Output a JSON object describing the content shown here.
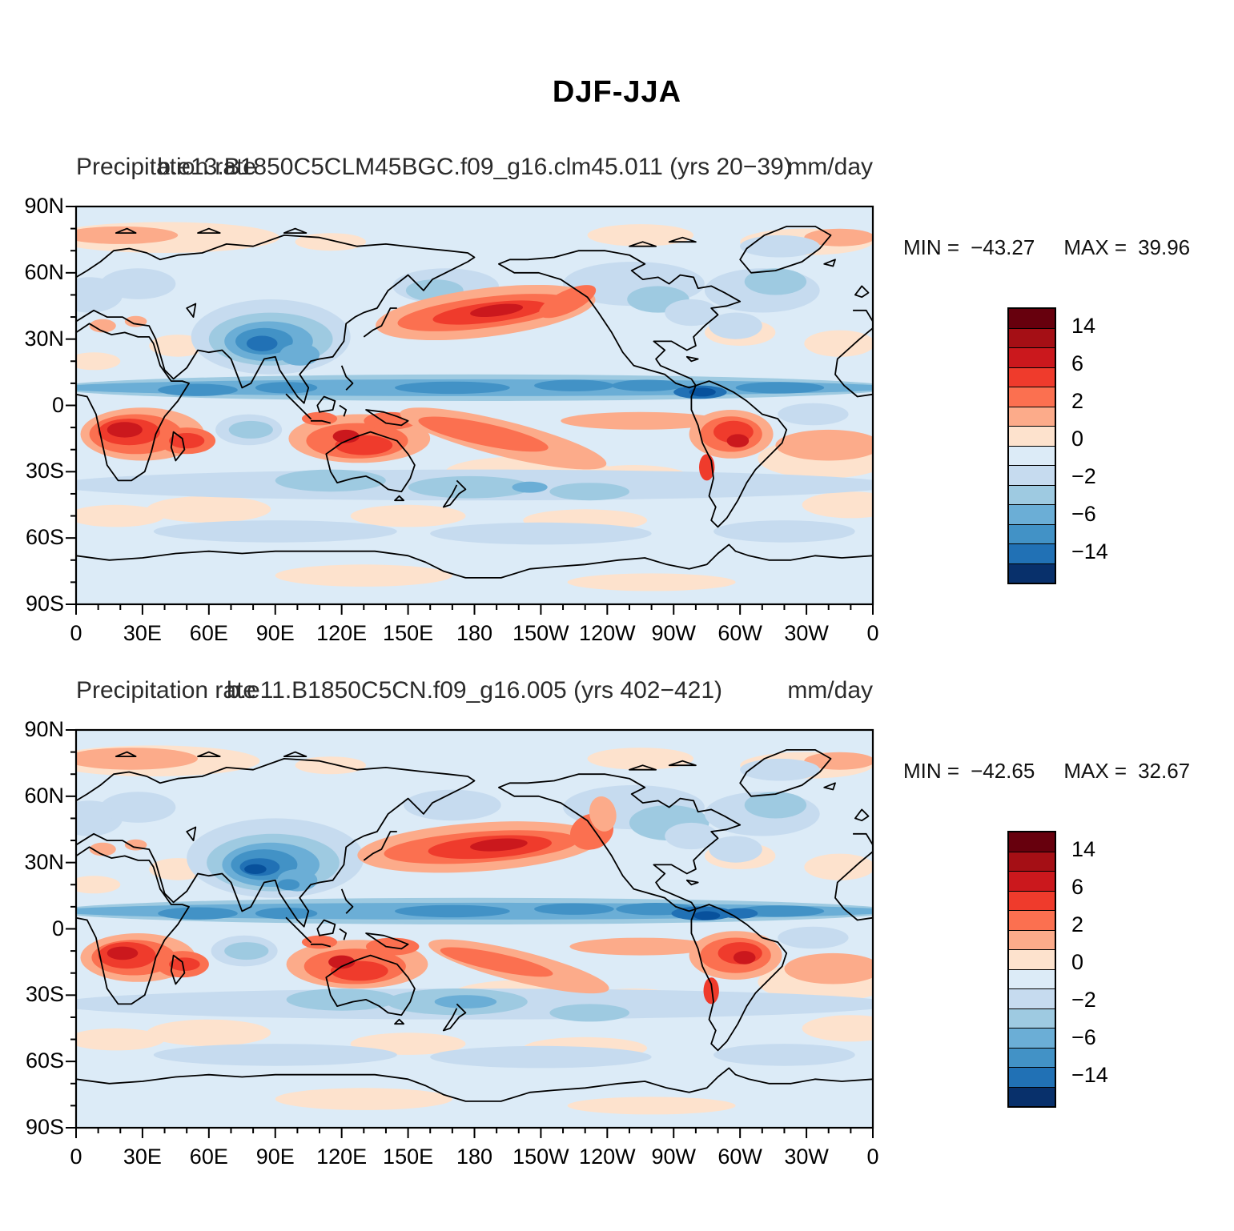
{
  "title": "DJF-JJA",
  "axes": {
    "x_ticks": [
      "0",
      "30E",
      "60E",
      "90E",
      "120E",
      "150E",
      "180",
      "150W",
      "120W",
      "90W",
      "60W",
      "30W",
      "0"
    ],
    "y_ticks": [
      "90N",
      "60N",
      "30N",
      "0",
      "30S",
      "60S",
      "90S"
    ]
  },
  "colorbar": {
    "labels": [
      "14",
      "6",
      "2",
      "0",
      "−2",
      "−6",
      "−14"
    ],
    "cell_colors": [
      "#67000d",
      "#a50f15",
      "#cb181d",
      "#ef3b2c",
      "#fb7050",
      "#fcab8a",
      "#fde2cd",
      "#dcebf7",
      "#c6dbef",
      "#9ecae1",
      "#6baed6",
      "#4292c6",
      "#2171b5",
      "#08306b"
    ]
  },
  "palette": {
    "base": "#dcebf7",
    "colors": {
      "r1": "#67000d",
      "r2": "#a50f15",
      "r3": "#cb181d",
      "r4": "#ef3b2c",
      "r5": "#fb7050",
      "r6": "#fcab8a",
      "r7": "#fde2cd",
      "b7": "#dcebf7",
      "b6": "#c6dbef",
      "b5": "#9ecae1",
      "b4": "#6baed6",
      "b3": "#4292c6",
      "b2": "#2171b5",
      "b1": "#08519c",
      "b0": "#08306b"
    }
  },
  "panels": [
    {
      "variable": "Precipitation rate",
      "case": "b.e13.B1850C5CLM45BGC.f09_g16.clm45.011 (yrs 20−39)",
      "units": "mm/day",
      "stats": {
        "min_label": "MIN =",
        "min": "−43.27",
        "max_label": "MAX =",
        "max": "39.96"
      }
    },
    {
      "variable": "Precipitation rate",
      "case": "b.e11.B1850C5CN.f09_g16.005 (yrs 402−421)",
      "units": "mm/day",
      "stats": {
        "min_label": "MIN =",
        "min": "−42.65",
        "max_label": "MAX =",
        "max": "32.67"
      }
    }
  ],
  "chart_data": [
    {
      "type": "heatmap",
      "subtype": "global-filled-contour-map",
      "figure_title": "DJF-JJA",
      "title": {
        "variable": "Precipitation rate",
        "case": "b.e13.B1850C5CLM45BGC.f09_g16.clm45.011 (yrs 20−39)",
        "units": "mm/day"
      },
      "stats": {
        "min": -43.27,
        "max": 39.96
      },
      "colorbar_labeled_levels": [
        14,
        6,
        2,
        0,
        -2,
        -6,
        -14
      ],
      "n_colors": 14,
      "legend_position": "right",
      "x_ticks": [
        "0",
        "30E",
        "60E",
        "90E",
        "120E",
        "150E",
        "180",
        "150W",
        "120W",
        "90W",
        "60W",
        "30W",
        "0"
      ],
      "y_ticks": [
        "90N",
        "60N",
        "30N",
        "0",
        "30S",
        "60S",
        "90S"
      ],
      "x_range_deg": [
        0,
        360
      ],
      "y_range_deg": [
        -90,
        90
      ],
      "grid": false
    },
    {
      "type": "heatmap",
      "subtype": "global-filled-contour-map",
      "figure_title": "DJF-JJA",
      "title": {
        "variable": "Precipitation rate",
        "case": "b.e11.B1850C5CN.f09_g16.005 (yrs 402−421)",
        "units": "mm/day"
      },
      "stats": {
        "min": -42.65,
        "max": 32.67
      },
      "colorbar_labeled_levels": [
        14,
        6,
        2,
        0,
        -2,
        -6,
        -14
      ],
      "n_colors": 14,
      "legend_position": "right",
      "x_ticks": [
        "0",
        "30E",
        "60E",
        "90E",
        "120E",
        "150E",
        "180",
        "150W",
        "120W",
        "90W",
        "60W",
        "30W",
        "0"
      ],
      "y_ticks": [
        "90N",
        "60N",
        "30N",
        "0",
        "30S",
        "60S",
        "90S"
      ],
      "x_range_deg": [
        0,
        360
      ],
      "y_range_deg": [
        -90,
        90
      ],
      "grid": false
    }
  ]
}
